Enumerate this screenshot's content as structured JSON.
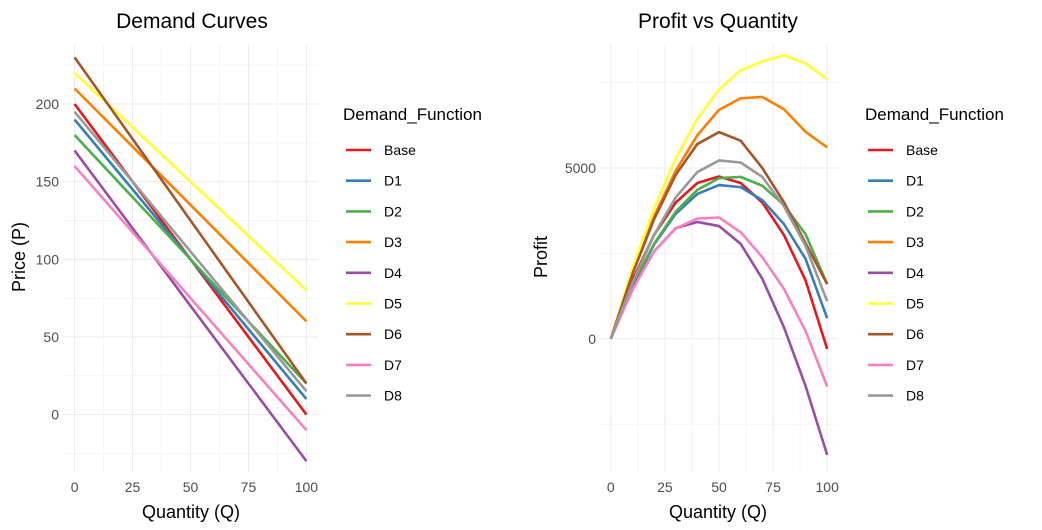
{
  "colors": {
    "Base": "#E41A1C",
    "D1": "#377EB8",
    "D2": "#4DAF4A",
    "D3": "#FF7F00",
    "D4": "#984EA3",
    "D5": "#FFFF33",
    "D6": "#A65628",
    "D7": "#F781BF",
    "D8": "#999999"
  },
  "chart_data": [
    {
      "type": "line",
      "title": "Demand Curves",
      "xlabel": "Quantity (Q)",
      "ylabel": "Price (P)",
      "xlim": [
        -5,
        105
      ],
      "ylim": [
        -37,
        238
      ],
      "x_ticks": [
        0,
        25,
        50,
        75,
        100
      ],
      "y_ticks": [
        0,
        50,
        100,
        150,
        200
      ],
      "x_tick_labels": [
        "0",
        "25",
        "50",
        "75",
        "100"
      ],
      "y_tick_labels": [
        "0",
        "50",
        "100",
        "150",
        "200"
      ],
      "grid": true,
      "legend_title": "Demand_Function",
      "legend_position": "right",
      "series": [
        {
          "name": "Base",
          "x": [
            0,
            100
          ],
          "y": [
            200,
            0
          ]
        },
        {
          "name": "D1",
          "x": [
            0,
            100
          ],
          "y": [
            190,
            10
          ]
        },
        {
          "name": "D2",
          "x": [
            0,
            100
          ],
          "y": [
            180,
            20
          ]
        },
        {
          "name": "D3",
          "x": [
            0,
            100
          ],
          "y": [
            210,
            60
          ]
        },
        {
          "name": "D4",
          "x": [
            0,
            100
          ],
          "y": [
            170,
            -30
          ]
        },
        {
          "name": "D5",
          "x": [
            0,
            100
          ],
          "y": [
            220,
            80
          ]
        },
        {
          "name": "D6",
          "x": [
            0,
            100
          ],
          "y": [
            230,
            20
          ]
        },
        {
          "name": "D7",
          "x": [
            0,
            100
          ],
          "y": [
            160,
            -10
          ]
        },
        {
          "name": "D8",
          "x": [
            0,
            100
          ],
          "y": [
            195,
            15
          ]
        }
      ]
    },
    {
      "type": "line",
      "title": "Profit vs Quantity",
      "xlabel": "Quantity (Q)",
      "ylabel": "Profit",
      "xlim": [
        -5,
        105
      ],
      "ylim": [
        -3900,
        8600
      ],
      "x_ticks": [
        0,
        25,
        50,
        75,
        100
      ],
      "y_ticks": [
        0,
        5000
      ],
      "x_tick_labels": [
        "0",
        "25",
        "50",
        "75",
        "100"
      ],
      "y_tick_labels": [
        "0",
        "5000"
      ],
      "grid": true,
      "legend_title": "Demand_Function",
      "legend_position": "right",
      "series": [
        {
          "name": "Base",
          "x": [
            0,
            10,
            20,
            30,
            40,
            50,
            60,
            70,
            80,
            90,
            100
          ],
          "y": [
            0,
            1710,
            3040,
            3990,
            4560,
            4750,
            4560,
            3990,
            3040,
            1710,
            -300
          ]
        },
        {
          "name": "D1",
          "x": [
            0,
            10,
            20,
            30,
            40,
            50,
            60,
            70,
            80,
            90,
            100
          ],
          "y": [
            0,
            1540,
            2760,
            3660,
            4240,
            4500,
            4440,
            4060,
            3360,
            2340,
            600
          ]
        },
        {
          "name": "D2",
          "x": [
            0,
            10,
            20,
            30,
            40,
            50,
            60,
            70,
            80,
            90,
            100
          ],
          "y": [
            0,
            1540,
            2780,
            3720,
            4360,
            4700,
            4740,
            4480,
            3920,
            3060,
            1600
          ]
        },
        {
          "name": "D3",
          "x": [
            0,
            10,
            20,
            30,
            40,
            50,
            60,
            70,
            80,
            90,
            100
          ],
          "y": [
            0,
            1940,
            3580,
            4920,
            5960,
            6700,
            7040,
            7080,
            6720,
            6060,
            5600
          ]
        },
        {
          "name": "D4",
          "x": [
            0,
            10,
            20,
            30,
            40,
            50,
            60,
            70,
            80,
            90,
            100
          ],
          "y": [
            0,
            1480,
            2560,
            3240,
            3420,
            3300,
            2780,
            1760,
            340,
            -1380,
            -3400
          ]
        },
        {
          "name": "D5",
          "x": [
            0,
            10,
            20,
            30,
            40,
            50,
            60,
            70,
            80,
            90,
            100
          ],
          "y": [
            0,
            2060,
            3820,
            5280,
            6440,
            7300,
            7860,
            8120,
            8300,
            8060,
            7600
          ]
        },
        {
          "name": "D6",
          "x": [
            0,
            10,
            20,
            30,
            40,
            50,
            60,
            70,
            80,
            90,
            100
          ],
          "y": [
            0,
            1900,
            3500,
            4800,
            5700,
            6050,
            5800,
            5000,
            4000,
            2800,
            1600
          ]
        },
        {
          "name": "D7",
          "x": [
            0,
            10,
            20,
            30,
            40,
            50,
            60,
            70,
            80,
            90,
            100
          ],
          "y": [
            0,
            1430,
            2560,
            3230,
            3520,
            3550,
            3120,
            2390,
            1460,
            230,
            -1400
          ]
        },
        {
          "name": "D8",
          "x": [
            0,
            10,
            20,
            30,
            40,
            50,
            60,
            70,
            80,
            90,
            100
          ],
          "y": [
            0,
            1640,
            3040,
            4140,
            4880,
            5220,
            5160,
            4740,
            3880,
            2720,
            1100
          ]
        }
      ]
    }
  ]
}
